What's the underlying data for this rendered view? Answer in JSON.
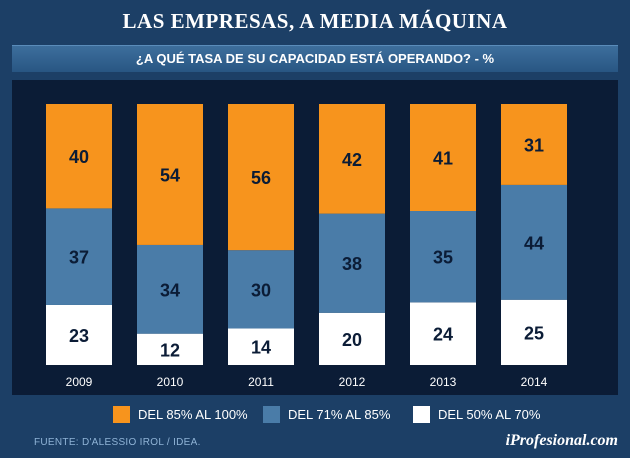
{
  "header": {
    "title": "LAS EMPRESAS, A MEDIA MÁQUINA",
    "subtitle": "¿A QUÉ TASA DE SU CAPACIDAD ESTÁ OPERANDO?  - %"
  },
  "chart_data": {
    "type": "bar",
    "stacked": true,
    "title": "LAS EMPRESAS, A MEDIA MÁQUINA",
    "subtitle": "¿A QUÉ TASA DE SU CAPACIDAD ESTÁ OPERANDO?  - %",
    "categories": [
      "2009",
      "2010",
      "2011",
      "2012",
      "2013",
      "2014"
    ],
    "series": [
      {
        "name": "DEL 50% AL 70%",
        "color": "#ffffff",
        "label_color": "#0b1c36",
        "values": [
          23,
          12,
          14,
          20,
          24,
          25
        ]
      },
      {
        "name": "DEL 71% AL 85%",
        "color": "#4a7ca8",
        "label_color": "#0b1c36",
        "values": [
          37,
          34,
          30,
          38,
          35,
          44
        ]
      },
      {
        "name": "DEL 85% AL 100%",
        "color": "#f7941d",
        "label_color": "#0b1c36",
        "values": [
          40,
          54,
          56,
          42,
          41,
          31
        ]
      }
    ],
    "ylim": [
      0,
      100
    ],
    "xlabel": "",
    "ylabel": ""
  },
  "legend": [
    {
      "label": "DEL 85% AL 100%",
      "color": "#f7941d"
    },
    {
      "label": "DEL 71% AL 85%",
      "color": "#4a7ca8"
    },
    {
      "label": "DEL 50% AL 70%",
      "color": "#ffffff"
    }
  ],
  "footer": {
    "source": "FUENTE: D'ALESSIO IROL / IDEA.",
    "brand": "iProfesional.com"
  }
}
